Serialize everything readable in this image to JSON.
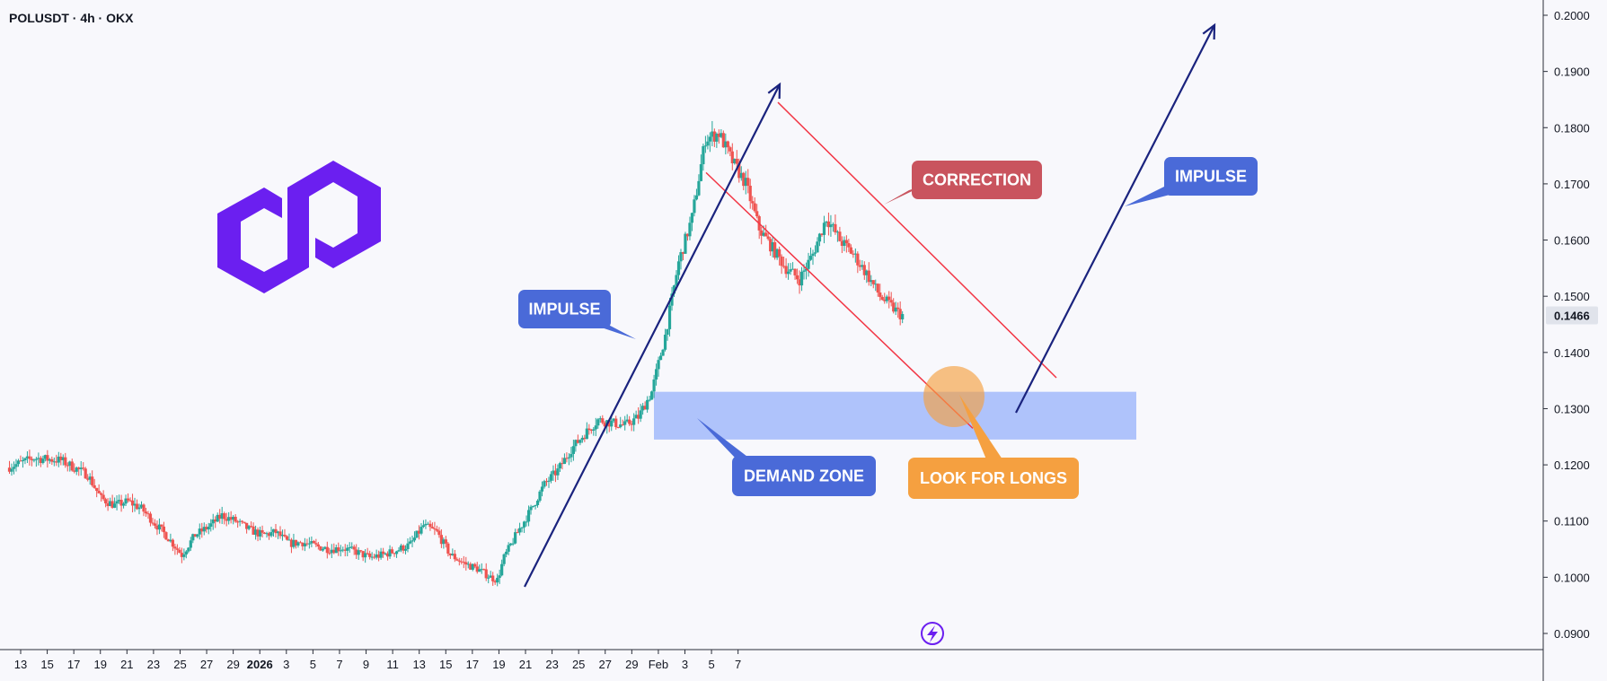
{
  "header": {
    "symbol_title": "POLUSDT · 4h · OKX"
  },
  "colors": {
    "background": "#f8f8fc",
    "up_candle": "#26a69a",
    "down_candle": "#ef5350",
    "impulse_arrow": "#1a237e",
    "channel_line": "#f23645",
    "demand_zone": "#a6bcfb",
    "callout_blue": "#4a6ad8",
    "callout_red": "#c9545e",
    "callout_orange": "#f5a040",
    "logo_purple": "#6b1ff0",
    "axis_text": "#131722",
    "axis_line": "#2a2e39"
  },
  "annotations": {
    "impulse_left": "IMPULSE",
    "impulse_right": "IMPULSE",
    "correction": "CORRECTION",
    "demand_zone": "DEMAND ZONE",
    "look_for_longs": "LOOK FOR LONGS"
  },
  "icons": {
    "logo": "polygon-logo-icon",
    "lightning": "lightning-icon"
  },
  "chart_data": {
    "type": "candlestick",
    "title": "POLUSDT · 4h · OKX",
    "ylim": [
      0.088,
      0.2015
    ],
    "y_ticks": [
      "0.2000",
      "0.1900",
      "0.1800",
      "0.1700",
      "0.1600",
      "0.1500",
      "0.1400",
      "0.1300",
      "0.1200",
      "0.1100",
      "0.1000",
      "0.0900"
    ],
    "x_ticks": [
      "13",
      "15",
      "17",
      "19",
      "21",
      "23",
      "25",
      "27",
      "29",
      "2026",
      "3",
      "5",
      "7",
      "9",
      "11",
      "13",
      "15",
      "17",
      "19",
      "21",
      "23",
      "25",
      "27",
      "29",
      "Feb",
      "3",
      "5",
      "7"
    ],
    "current_price": "0.1466",
    "demand_zone": {
      "from_price": 0.1245,
      "to_price": 0.133
    },
    "channel": [
      {
        "from": 0.1845,
        "to": 0.1355
      },
      {
        "from": 0.172,
        "to": 0.1265
      }
    ],
    "close_path": [
      [
        0,
        0.1195
      ],
      [
        2,
        0.1212
      ],
      [
        4,
        0.1208
      ],
      [
        6,
        0.1182
      ],
      [
        7,
        0.114
      ],
      [
        8,
        0.1128
      ],
      [
        9,
        0.1135
      ],
      [
        10,
        0.1122
      ],
      [
        12,
        0.107
      ],
      [
        13,
        0.104
      ],
      [
        14,
        0.1075
      ],
      [
        15,
        0.109
      ],
      [
        16,
        0.111
      ],
      [
        17,
        0.11
      ],
      [
        18,
        0.1085
      ],
      [
        19,
        0.1075
      ],
      [
        20,
        0.108
      ],
      [
        21,
        0.106
      ],
      [
        22,
        0.1062
      ],
      [
        23,
        0.1055
      ],
      [
        24,
        0.105
      ],
      [
        25,
        0.1052
      ],
      [
        26,
        0.1045
      ],
      [
        27,
        0.1035
      ],
      [
        28,
        0.104
      ],
      [
        29,
        0.1048
      ],
      [
        30,
        0.1058
      ],
      [
        31,
        0.1092
      ],
      [
        32,
        0.108
      ],
      [
        33,
        0.104
      ],
      [
        34,
        0.1025
      ],
      [
        35,
        0.1015
      ],
      [
        36,
        0.1
      ],
      [
        36.5,
        0.0995
      ],
      [
        37,
        0.1035
      ],
      [
        38,
        0.108
      ],
      [
        39,
        0.112
      ],
      [
        40,
        0.1165
      ],
      [
        41,
        0.119
      ],
      [
        42,
        0.1228
      ],
      [
        43,
        0.1255
      ],
      [
        44,
        0.128
      ],
      [
        45,
        0.1275
      ],
      [
        46,
        0.127
      ],
      [
        47,
        0.1285
      ],
      [
        48,
        0.133
      ],
      [
        49,
        0.143
      ],
      [
        50,
        0.156
      ],
      [
        51,
        0.164
      ],
      [
        52,
        0.178
      ],
      [
        53,
        0.179
      ],
      [
        54,
        0.174
      ],
      [
        55,
        0.17
      ],
      [
        56,
        0.162
      ],
      [
        57,
        0.1585
      ],
      [
        58,
        0.155
      ],
      [
        59,
        0.153
      ],
      [
        60,
        0.1575
      ],
      [
        61,
        0.164
      ],
      [
        62,
        0.16
      ],
      [
        63,
        0.1575
      ],
      [
        64,
        0.154
      ],
      [
        65,
        0.15
      ],
      [
        66,
        0.1478
      ],
      [
        66.6,
        0.1466
      ]
    ]
  }
}
